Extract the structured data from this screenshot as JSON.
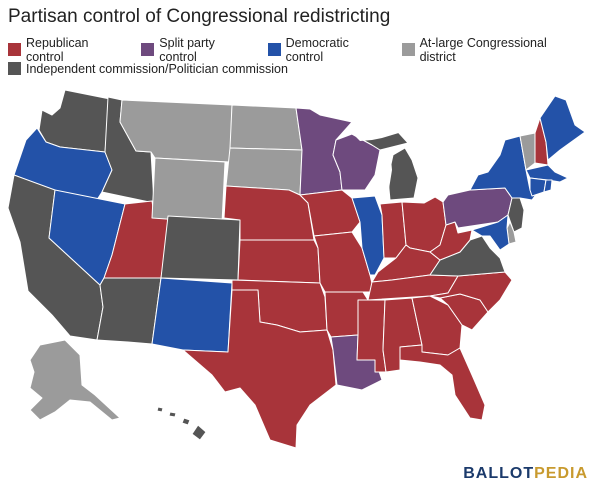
{
  "title": "Partisan control of Congressional redistricting",
  "colors": {
    "republican": "#a8343a",
    "split": "#6e4a7e",
    "democratic": "#2352a8",
    "at_large": "#9b9b9b",
    "commission": "#555555",
    "lakes": "#ffffff"
  },
  "legend": [
    {
      "label": "Republican control",
      "key": "republican"
    },
    {
      "label": "Split party control",
      "key": "split"
    },
    {
      "label": "Democratic control",
      "key": "democratic"
    },
    {
      "label": "At-large Congressional district",
      "key": "at_large"
    },
    {
      "label": "Independent commission/Politician commission",
      "key": "commission"
    }
  ],
  "states": [
    {
      "id": "WA",
      "control": "commission"
    },
    {
      "id": "OR",
      "control": "democratic"
    },
    {
      "id": "CA",
      "control": "commission"
    },
    {
      "id": "ID",
      "control": "commission"
    },
    {
      "id": "NV",
      "control": "democratic"
    },
    {
      "id": "UT",
      "control": "republican"
    },
    {
      "id": "AZ",
      "control": "commission"
    },
    {
      "id": "MT",
      "control": "at_large"
    },
    {
      "id": "WY",
      "control": "at_large"
    },
    {
      "id": "CO",
      "control": "commission"
    },
    {
      "id": "NM",
      "control": "democratic"
    },
    {
      "id": "ND",
      "control": "at_large"
    },
    {
      "id": "SD",
      "control": "at_large"
    },
    {
      "id": "NE",
      "control": "republican"
    },
    {
      "id": "KS",
      "control": "republican"
    },
    {
      "id": "OK",
      "control": "republican"
    },
    {
      "id": "TX",
      "control": "republican"
    },
    {
      "id": "MN",
      "control": "split"
    },
    {
      "id": "IA",
      "control": "republican"
    },
    {
      "id": "MO",
      "control": "republican"
    },
    {
      "id": "AR",
      "control": "republican"
    },
    {
      "id": "LA",
      "control": "split"
    },
    {
      "id": "WI",
      "control": "split"
    },
    {
      "id": "IL",
      "control": "democratic"
    },
    {
      "id": "MI",
      "control": "commission"
    },
    {
      "id": "IN",
      "control": "republican"
    },
    {
      "id": "OH",
      "control": "republican"
    },
    {
      "id": "KY",
      "control": "republican"
    },
    {
      "id": "TN",
      "control": "republican"
    },
    {
      "id": "MS",
      "control": "republican"
    },
    {
      "id": "AL",
      "control": "republican"
    },
    {
      "id": "GA",
      "control": "republican"
    },
    {
      "id": "FL",
      "control": "republican"
    },
    {
      "id": "SC",
      "control": "republican"
    },
    {
      "id": "NC",
      "control": "republican"
    },
    {
      "id": "VA",
      "control": "commission"
    },
    {
      "id": "WV",
      "control": "republican"
    },
    {
      "id": "PA",
      "control": "split"
    },
    {
      "id": "NY",
      "control": "democratic"
    },
    {
      "id": "VT",
      "control": "at_large"
    },
    {
      "id": "NH",
      "control": "republican"
    },
    {
      "id": "ME",
      "control": "democratic"
    },
    {
      "id": "MA",
      "control": "democratic"
    },
    {
      "id": "CT",
      "control": "democratic"
    },
    {
      "id": "RI",
      "control": "democratic"
    },
    {
      "id": "NJ",
      "control": "commission"
    },
    {
      "id": "DE",
      "control": "at_large"
    },
    {
      "id": "MD",
      "control": "democratic"
    },
    {
      "id": "AK",
      "control": "at_large"
    },
    {
      "id": "HI",
      "control": "commission"
    }
  ],
  "logo": {
    "part1": "BALLOT",
    "part2": "PEDIA"
  }
}
